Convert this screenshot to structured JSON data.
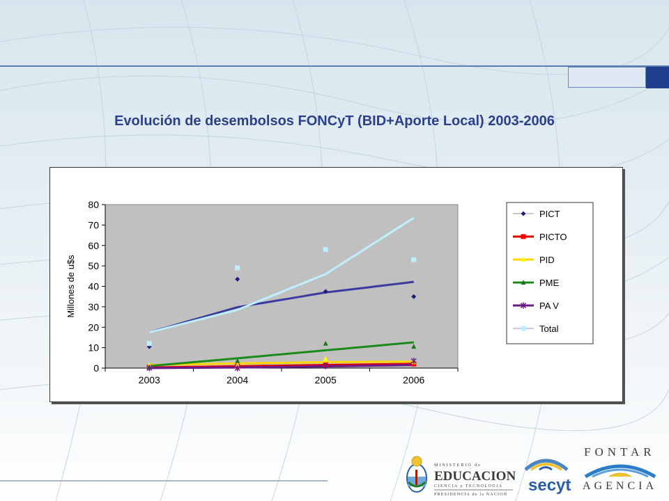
{
  "slide": {
    "title": "Evolución de desembolsos FONCyT (BID+Aporte Local) 2003-2006"
  },
  "chart_data": {
    "type": "scatter",
    "title": "",
    "ylabel": "Millones de u$s",
    "xlabel": "",
    "categories": [
      "2003",
      "2004",
      "2005",
      "2006"
    ],
    "ylim": [
      0,
      80
    ],
    "yticks": [
      "0",
      "10",
      "20",
      "30",
      "40",
      "50",
      "60",
      "70",
      "80"
    ],
    "grid": false,
    "legend_position": "right",
    "plot_background": "#c0c0c0",
    "series": [
      {
        "name": "PICT",
        "values": [
          10.5,
          43.5,
          37.5,
          35
        ],
        "color": "#1f1f7a",
        "marker": "diamond",
        "trend": "logarithmic",
        "trend_color": "#3a3aa0",
        "trend_values": [
          17.5,
          29.8,
          37.0,
          42.2
        ]
      },
      {
        "name": "PICTO",
        "values": [
          0.5,
          1,
          1.5,
          2
        ],
        "color": "#ff0000",
        "marker": "square",
        "trend": "linear",
        "trend_color": "#dd0000",
        "trend_values": [
          0.3,
          0.9,
          1.5,
          2.1
        ]
      },
      {
        "name": "PID",
        "values": [
          1.5,
          1.5,
          4.5,
          3
        ],
        "color": "#ffff00",
        "marker": "triangle",
        "trend": "linear",
        "trend_color": "#ffd700",
        "trend_values": [
          1.5,
          2.3,
          2.9,
          3.2
        ]
      },
      {
        "name": "PME",
        "values": [
          0.5,
          3.5,
          12,
          10.5
        ],
        "color": "#1a7a1a",
        "marker": "triangle",
        "trend": "linear",
        "trend_color": "#1a8a1a",
        "trend_values": [
          1.0,
          4.8,
          8.7,
          12.6
        ]
      },
      {
        "name": "PA V",
        "values": [
          0,
          0,
          1,
          3.5
        ],
        "color": "#6a1a8a",
        "marker": "star",
        "trend": "linear",
        "trend_color": "#6a1a8a",
        "trend_values": [
          0,
          0.3,
          0.8,
          1.5
        ]
      },
      {
        "name": "Total",
        "values": [
          12,
          49,
          58,
          53
        ],
        "color": "#bfefff",
        "marker": "square",
        "trend": "exponential",
        "trend_color": "#bfefff",
        "trend_values": [
          17.5,
          28.5,
          46.0,
          73.5
        ]
      }
    ]
  },
  "logos": {
    "ministerio_top": "MINISTERIO de",
    "ministerio_main": "EDUCACION",
    "ministerio_sub": "CIENCIA y TECNOLOGIA",
    "ministerio_bottom": "PRESIDENCIA de la NACION",
    "secyt": "secyt",
    "fontar": "FONTAR",
    "agencia": "AGENCIA"
  }
}
